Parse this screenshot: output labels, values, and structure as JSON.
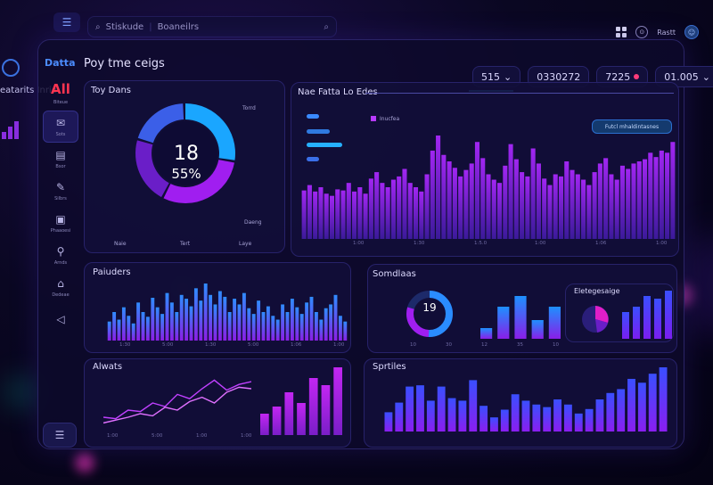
{
  "topbar": {
    "search_left": "Stiskude",
    "search_right": "Boaneilrs",
    "user_label": "Rastt"
  },
  "outside": {
    "label": "eatarits Inrie"
  },
  "sidebar": {
    "brand": "Datta",
    "items": [
      {
        "icon": "All",
        "label": "Biteue"
      },
      {
        "icon": "✉",
        "label": "Sots"
      },
      {
        "icon": "▤",
        "label": "Bsor"
      },
      {
        "icon": "✎",
        "label": "Silbrs"
      },
      {
        "icon": "▣",
        "label": "Phaaoesi"
      },
      {
        "icon": "⚲",
        "label": "Arnds"
      },
      {
        "icon": "⌂",
        "label": "Dedeae"
      },
      {
        "icon": "◁",
        "label": ""
      }
    ]
  },
  "page_title": "Poy tme ceigs",
  "header_pills": [
    {
      "text": "515",
      "suffix": "⌄"
    },
    {
      "text": "0330272"
    },
    {
      "text": "7225"
    },
    {
      "text": "01.005",
      "suffix": "⌄"
    }
  ],
  "donut": {
    "title": "Toy Dans",
    "value": "18",
    "percent": "55%",
    "label_tr": "Torrd",
    "label_br": "Daeng",
    "bottom_labels": [
      "Naie",
      "Tert",
      "Laye"
    ],
    "colors": [
      "#1aa6ff",
      "#9b1ff0",
      "#6a1ec8",
      "#3b5fe8"
    ]
  },
  "big_chart": {
    "title": "Nae Fatta Lo Edes",
    "legend_top": "Inucfea",
    "button": "Futcl mhaldintasnes",
    "xticks": [
      "1:00",
      "1:30",
      "1:5.0",
      "1:00",
      "1:06",
      "1:00"
    ]
  },
  "panels": {
    "left_title": "Paiuders",
    "left_xticks": [
      "1:30",
      "5:00",
      "1:30",
      "5:00",
      "1:06",
      "1:00"
    ],
    "center_title": "Somdlaas",
    "center_xticks": [
      "10",
      "30",
      "12",
      "35",
      "10"
    ],
    "center_right_title": "Eletegesaige",
    "alerts_title": "Alwats",
    "alerts_xticks": [
      "1:00",
      "5:00",
      "1:00",
      "1:00"
    ],
    "series_title": "Sprtiles",
    "mini_donut_value": "19"
  },
  "chart_data": [
    {
      "type": "pie",
      "title": "Toy Dans",
      "values": [
        28,
        30,
        22,
        20
      ],
      "colors": [
        "#1aa6ff",
        "#a01ef0",
        "#6a1ec8",
        "#3b5fe8"
      ]
    },
    {
      "type": "bar",
      "title": "Nae Fatta Lo Edes",
      "values": [
        45,
        50,
        44,
        48,
        42,
        40,
        46,
        45,
        52,
        44,
        48,
        42,
        56,
        62,
        52,
        48,
        55,
        58,
        65,
        52,
        48,
        44,
        60,
        82,
        96,
        78,
        72,
        66,
        58,
        64,
        70,
        90,
        75,
        60,
        55,
        52,
        68,
        88,
        74,
        62,
        58,
        84,
        70,
        56,
        50,
        60,
        58,
        72,
        64,
        60,
        55,
        50,
        62,
        70,
        75,
        60,
        55,
        68,
        65,
        70,
        72,
        74,
        80,
        76,
        82,
        80,
        90
      ]
    },
    {
      "type": "bar",
      "title": "Paiuders",
      "values": [
        20,
        30,
        22,
        35,
        26,
        18,
        40,
        30,
        25,
        45,
        35,
        28,
        50,
        40,
        30,
        48,
        44,
        36,
        55,
        42,
        60,
        48,
        38,
        52,
        46,
        30,
        44,
        38,
        50,
        34,
        28,
        42,
        30,
        36,
        26,
        22,
        38,
        30,
        44,
        35,
        28,
        40,
        46,
        30,
        22,
        34,
        38,
        48,
        26,
        20
      ]
    },
    {
      "type": "bar",
      "title": "Somdlaas",
      "values": [
        20,
        60,
        80,
        35,
        60
      ]
    },
    {
      "type": "bar",
      "title": "Eletegesaige",
      "values": [
        50,
        60,
        80,
        75,
        90
      ]
    },
    {
      "type": "line",
      "title": "Alwats",
      "series": [
        {
          "values": [
            20,
            18,
            30,
            28,
            40,
            35,
            52,
            46,
            60,
            72,
            58,
            66,
            70
          ]
        },
        {
          "values": [
            12,
            16,
            20,
            25,
            22,
            34,
            30,
            42,
            48,
            40,
            55,
            62,
            60
          ]
        }
      ]
    },
    {
      "type": "bar",
      "title": "Alwats-bars",
      "values": [
        30,
        40,
        60,
        45,
        80,
        70,
        95
      ]
    },
    {
      "type": "bar",
      "title": "Sprtiles",
      "values": [
        30,
        45,
        70,
        72,
        48,
        70,
        52,
        48,
        80,
        40,
        22,
        34,
        58,
        48,
        42,
        38,
        50,
        42,
        28,
        35,
        50,
        60,
        66,
        82,
        76,
        90,
        100
      ]
    }
  ]
}
